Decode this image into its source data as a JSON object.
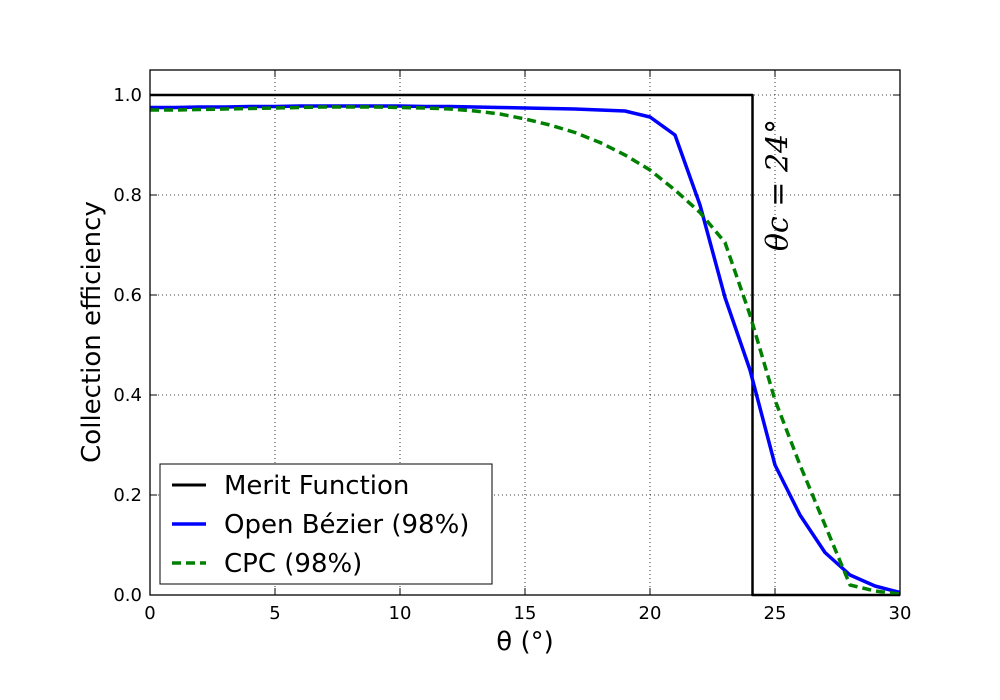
{
  "chart_data": {
    "type": "line",
    "xlabel": "θ (°)",
    "ylabel": "Collection efficiency",
    "xlim": [
      0,
      30
    ],
    "ylim": [
      0,
      1.05
    ],
    "xticks": [
      0,
      5,
      10,
      15,
      20,
      25,
      30
    ],
    "xtick_labels": [
      "0",
      "5",
      "10",
      "15",
      "20",
      "25",
      "30"
    ],
    "yticks": [
      0.0,
      0.2,
      0.4,
      0.6,
      0.8,
      1.0
    ],
    "ytick_labels": [
      "0.0",
      "0.2",
      "0.4",
      "0.6",
      "0.8",
      "1.0"
    ],
    "grid": true,
    "legend_position": "lower-left",
    "annotation": {
      "text": "θc = 24°",
      "x": 25.5,
      "y": 0.82
    },
    "series": [
      {
        "name": "Merit Function",
        "color": "#000000",
        "style": "solid",
        "x": [
          0,
          23.9,
          23.9,
          24.1,
          24.1,
          30
        ],
        "y": [
          1.0,
          1.0,
          1.0,
          1.0,
          0.0,
          0.0
        ]
      },
      {
        "name": "Open Bézier (98%)",
        "color": "#0000ff",
        "style": "solid",
        "x": [
          0,
          1,
          2,
          3,
          4,
          5,
          6,
          7,
          8,
          9,
          10,
          11,
          12,
          13,
          14,
          15,
          16,
          17,
          18,
          19,
          20,
          21,
          22,
          23,
          24,
          25,
          26,
          27,
          28,
          29,
          30
        ],
        "y": [
          0.975,
          0.975,
          0.976,
          0.976,
          0.977,
          0.977,
          0.978,
          0.978,
          0.978,
          0.978,
          0.978,
          0.977,
          0.977,
          0.976,
          0.975,
          0.974,
          0.973,
          0.972,
          0.97,
          0.968,
          0.956,
          0.92,
          0.78,
          0.595,
          0.45,
          0.26,
          0.16,
          0.085,
          0.04,
          0.018,
          0.005
        ]
      },
      {
        "name": "CPC (98%)",
        "color": "#008000",
        "style": "dashed",
        "x": [
          0,
          1,
          2,
          3,
          4,
          5,
          6,
          7,
          8,
          9,
          10,
          11,
          12,
          13,
          14,
          15,
          16,
          17,
          18,
          19,
          20,
          21,
          22,
          23,
          24,
          25,
          26,
          27,
          28,
          29,
          30
        ],
        "y": [
          0.97,
          0.97,
          0.971,
          0.972,
          0.973,
          0.974,
          0.975,
          0.976,
          0.976,
          0.976,
          0.975,
          0.974,
          0.972,
          0.968,
          0.962,
          0.952,
          0.94,
          0.925,
          0.905,
          0.88,
          0.85,
          0.81,
          0.765,
          0.705,
          0.56,
          0.39,
          0.26,
          0.14,
          0.02,
          0.008,
          0.002
        ]
      }
    ]
  }
}
